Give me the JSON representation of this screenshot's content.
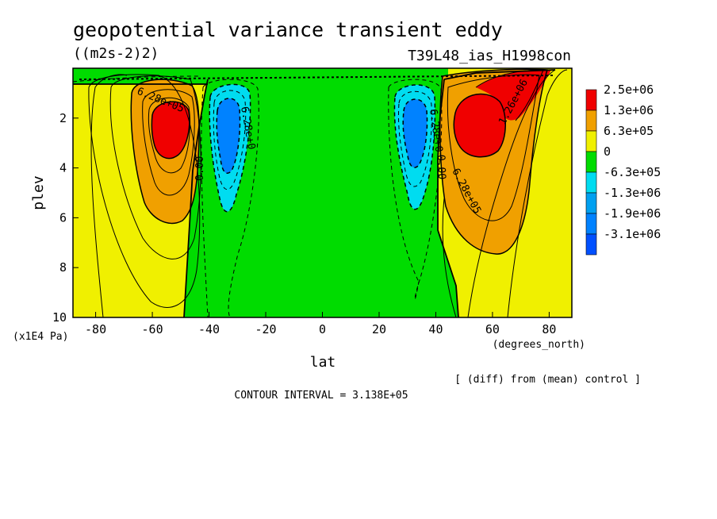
{
  "chart_data": {
    "type": "contour",
    "title": "geopotential variance transient eddy",
    "units": "((m2s-2)2)",
    "run_label": "T39L48_ias_H1998con",
    "xlabel": "lat",
    "x_units": "(degrees_north)",
    "ylabel": "plev",
    "y_units": "(x1E4 Pa)",
    "xlim": [
      -88,
      88
    ],
    "ylim": [
      10,
      0
    ],
    "x_ticks": [
      "-80",
      "-60",
      "-40",
      "-20",
      "0",
      "20",
      "40",
      "60",
      "80"
    ],
    "y_ticks": [
      "2",
      "4",
      "6",
      "8",
      "10"
    ],
    "contour_interval_text": "CONTOUR INTERVAL = 3.138E+05",
    "note": "[ (diff) from (mean) control ]",
    "contour_labels": [
      "6.28e+05",
      "0.00",
      "6.28e+0",
      "6.28e+0",
      "0.00",
      "6.28e+05",
      "1.26e+06"
    ],
    "legend": [
      {
        "label": "2.5e+06",
        "color": "#f00000"
      },
      {
        "label": "1.3e+06",
        "color": "#f0a000"
      },
      {
        "label": "6.3e+05",
        "color": "#f0f000"
      },
      {
        "label": "0",
        "color": "#00dc00"
      },
      {
        "label": "-6.3e+05",
        "color": "#00dcf0"
      },
      {
        "label": "-1.3e+06",
        "color": "#00a0f0"
      },
      {
        "label": "-1.9e+06",
        "color": "#0082ff"
      },
      {
        "label": "-3.1e+06",
        "color": "#0050ff"
      }
    ],
    "blobs": [
      {
        "lat": -54.5,
        "plev": 2.6,
        "value": 2500000
      },
      {
        "lat": 53,
        "plev": 2.5,
        "value": 2500000
      },
      {
        "lat": 63,
        "plev": 0.9,
        "value": 2500000
      },
      {
        "lat": -34,
        "plev": 2.6,
        "value": -1900000
      },
      {
        "lat": 33.5,
        "plev": 2.7,
        "value": -1900000
      }
    ]
  }
}
